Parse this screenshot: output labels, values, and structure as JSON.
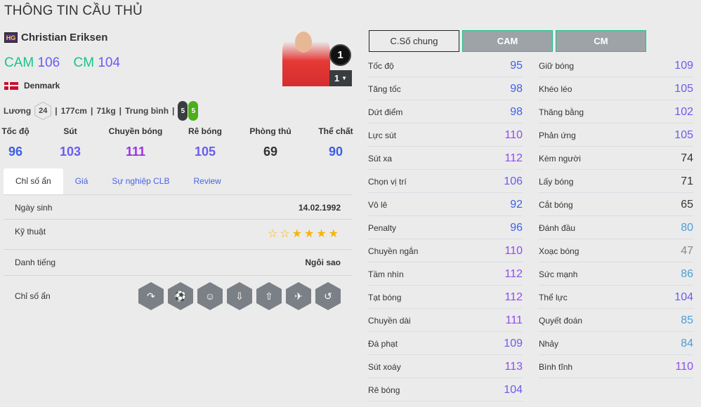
{
  "page_title": "THÔNG TIN CẦU THỦ",
  "player": {
    "season_badge": "HG",
    "name": "Christian Eriksen",
    "positions": [
      {
        "pos": "CAM",
        "ovr": "106"
      },
      {
        "pos": "CM",
        "ovr": "104"
      }
    ],
    "nation": "Denmark",
    "salary_label": "Lương",
    "salary": "24",
    "height": "177cm",
    "weight": "71kg",
    "body_type": "Trung bình",
    "left_foot": "5",
    "right_foot": "5",
    "upgrade_badge": "1",
    "level": "1"
  },
  "summary": [
    {
      "label": "Tốc độ",
      "value": "96",
      "color": "#3d5ee8"
    },
    {
      "label": "Sút",
      "value": "103",
      "color": "#6a5cf0"
    },
    {
      "label": "Chuyền bóng",
      "value": "111",
      "color": "#9b30e6"
    },
    {
      "label": "Rê bóng",
      "value": "105",
      "color": "#6a5cf0"
    },
    {
      "label": "Phòng thủ",
      "value": "69",
      "color": "#333333"
    },
    {
      "label": "Thể chất",
      "value": "90",
      "color": "#3d5ee8"
    }
  ],
  "tabs": [
    "Chỉ số ẩn",
    "Giá",
    "Sự nghiệp CLB",
    "Review"
  ],
  "details": {
    "birth_label": "Ngày sinh",
    "birth": "14.02.1992",
    "skill_label": "Kỹ thuật",
    "skill_stars": 4,
    "skill_max": 6,
    "rep_label": "Danh tiếng",
    "rep": "Ngôi sao",
    "hidden_label": "Chỉ số ẩn",
    "hidden_traits": [
      "long-shot-taker-icon",
      "finesse-shot-icon",
      "playmaker-icon",
      "through-pass-icon",
      "long-passer-icon",
      "flair-icon",
      "outside-foot-shot-icon"
    ]
  },
  "stat_buttons": [
    "C.Số chung",
    "CAM",
    "CM"
  ],
  "stats_left": [
    [
      "Tốc độ",
      "95"
    ],
    [
      "Tăng tốc",
      "98"
    ],
    [
      "Dứt điểm",
      "98"
    ],
    [
      "Lực sút",
      "110"
    ],
    [
      "Sút xa",
      "112"
    ],
    [
      "Chọn vị trí",
      "106"
    ],
    [
      "Vô lê",
      "92"
    ],
    [
      "Penalty",
      "96"
    ],
    [
      "Chuyền ngắn",
      "110"
    ],
    [
      "Tầm nhìn",
      "112"
    ],
    [
      "Tạt bóng",
      "112"
    ],
    [
      "Chuyền dài",
      "111"
    ],
    [
      "Đá phạt",
      "109"
    ],
    [
      "Sút xoáy",
      "113"
    ],
    [
      "Rê bóng",
      "104"
    ]
  ],
  "stats_right": [
    [
      "Giữ bóng",
      "109"
    ],
    [
      "Khéo léo",
      "105"
    ],
    [
      "Thăng bằng",
      "102"
    ],
    [
      "Phản ứng",
      "105"
    ],
    [
      "Kèm người",
      "74"
    ],
    [
      "Lấy bóng",
      "71"
    ],
    [
      "Cắt bóng",
      "65"
    ],
    [
      "Đánh đầu",
      "80"
    ],
    [
      "Xoạc bóng",
      "47"
    ],
    [
      "Sức mạnh",
      "86"
    ],
    [
      "Thể lực",
      "104"
    ],
    [
      "Quyết đoán",
      "85"
    ],
    [
      "Nhảy",
      "84"
    ],
    [
      "Bình tĩnh",
      "110"
    ]
  ],
  "colors": {
    "position": "#19c38a",
    "tier_110": "#8f4cf2",
    "tier_100": "#6a5cf0",
    "tier_90": "#3d62e8",
    "tier_80": "#4a9fd8",
    "tier_60": "#333333",
    "tier_low": "#888888"
  }
}
